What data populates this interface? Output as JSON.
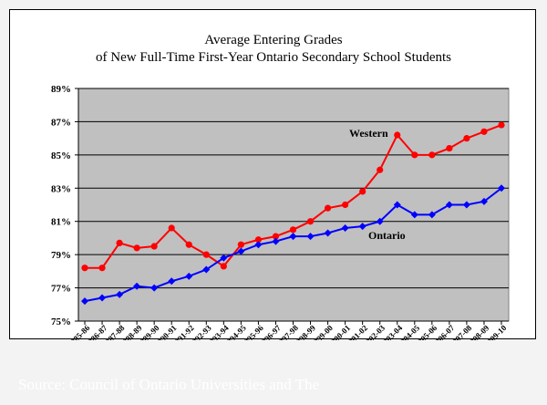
{
  "slide": {
    "background": "#f3f3f3",
    "source_text": "Source:  Council of Ontario Universities and The"
  },
  "chart_data": {
    "type": "line",
    "title_lines": [
      "Average Entering Grades",
      "of New Full-Time First-Year Ontario Secondary School Students"
    ],
    "categories": [
      "1985-86",
      "1986-87",
      "1987-88",
      "1988-89",
      "1989-90",
      "1990-91",
      "1991-92",
      "1992-93",
      "1993-94",
      "1994-95",
      "1995-96",
      "1996-97",
      "1997-98",
      "1998-99",
      "1999-00",
      "2000-01",
      "2001-02",
      "2002-03",
      "2003-04",
      "2004-05",
      "2005-06",
      "2006-07",
      "2007-08",
      "2008-09",
      "2009-10"
    ],
    "ylim": [
      75,
      89
    ],
    "yticks": [
      75,
      77,
      79,
      81,
      83,
      85,
      87,
      89
    ],
    "ytick_labels": [
      "75%",
      "77%",
      "79%",
      "81%",
      "83%",
      "85%",
      "87%",
      "89%"
    ],
    "grid": true,
    "plot_background": "#c0c0c0",
    "series": [
      {
        "name": "Western",
        "color": "#ff0000",
        "marker": "circle",
        "values": [
          78.2,
          78.2,
          79.7,
          79.4,
          79.5,
          80.6,
          79.6,
          79.0,
          78.3,
          79.6,
          79.9,
          80.1,
          80.5,
          81.0,
          81.8,
          82.0,
          82.8,
          84.1,
          86.2,
          85.0,
          85.0,
          85.4,
          86.0,
          86.4,
          86.8
        ]
      },
      {
        "name": "Ontario",
        "color": "#0000ff",
        "marker": "diamond",
        "values": [
          76.2,
          76.4,
          76.6,
          77.1,
          77.0,
          77.4,
          77.7,
          78.1,
          78.8,
          79.2,
          79.6,
          79.8,
          80.1,
          80.1,
          80.3,
          80.6,
          80.7,
          81.0,
          82.0,
          81.4,
          81.4,
          82.0,
          82.0,
          82.2,
          83.0
        ]
      }
    ]
  }
}
